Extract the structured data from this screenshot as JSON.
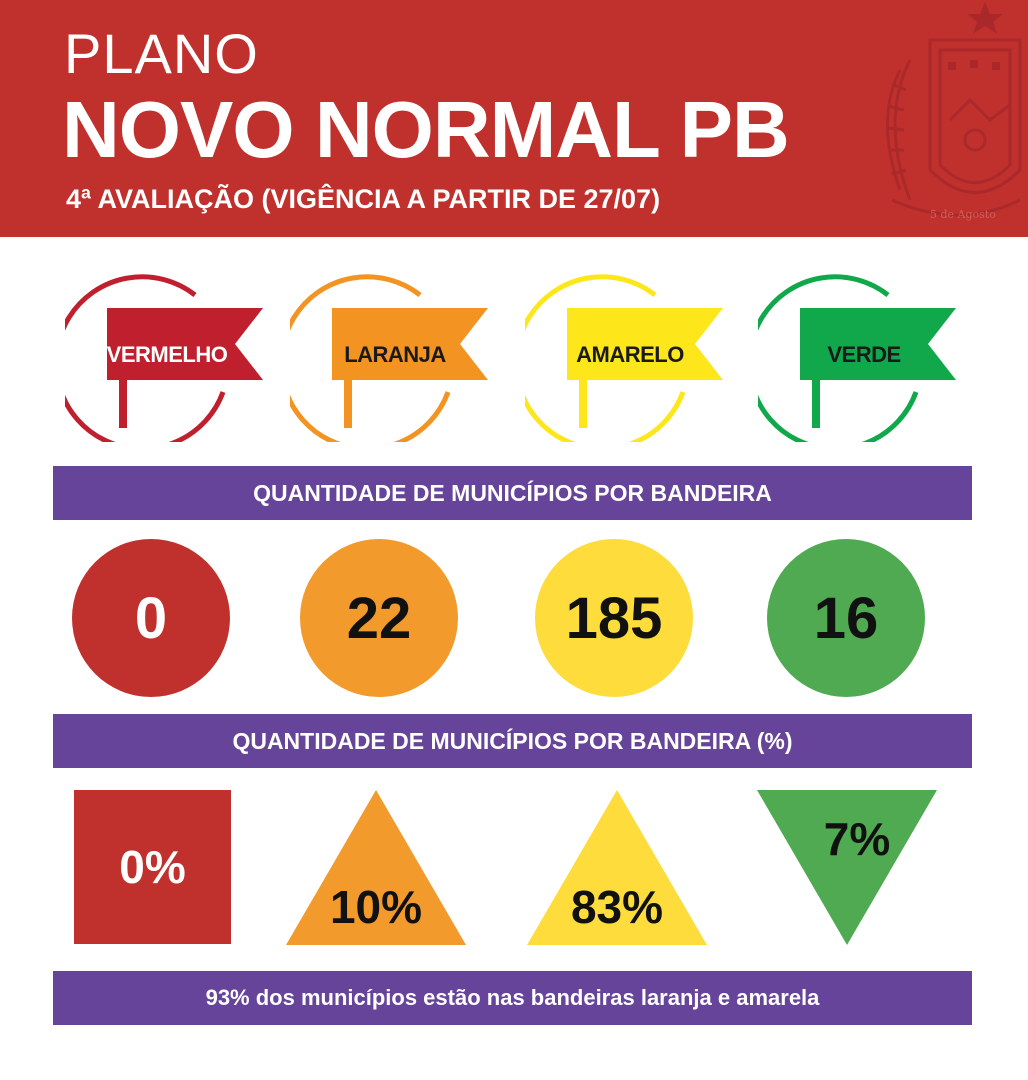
{
  "header": {
    "plano": "PLANO",
    "title": "NOVO NORMAL PB",
    "subtitle": "4ª AVALIAÇÃO (VIGÊNCIA A PARTIR DE 27/07)",
    "crest_text": "5 de Agosto"
  },
  "flags": [
    {
      "label": "VERMELHO",
      "color": "#c0202e",
      "text_color": "#ffffff"
    },
    {
      "label": "LARANJA",
      "color": "#f39322",
      "text_color": "#1a1a1a"
    },
    {
      "label": "AMARELO",
      "color": "#fde71a",
      "text_color": "#1a1a1a"
    },
    {
      "label": "VERDE",
      "color": "#10a84a",
      "text_color": "#1a1a1a"
    }
  ],
  "banner_count": "QUANTIDADE DE MUNICÍPIOS POR BANDEIRA",
  "counts": [
    {
      "value": "0",
      "color": "#c0302d",
      "text_color": "#ffffff"
    },
    {
      "value": "22",
      "color": "#f39a2c",
      "text_color": "#111111"
    },
    {
      "value": "185",
      "color": "#fddc3c",
      "text_color": "#111111"
    },
    {
      "value": "16",
      "color": "#4faa51",
      "text_color": "#111111"
    }
  ],
  "banner_percent": "QUANTIDADE DE MUNICÍPIOS POR BANDEIRA (%)",
  "percents": [
    {
      "value": "0%",
      "shape": "square",
      "color": "#c0302d",
      "text_color": "#ffffff"
    },
    {
      "value": "10%",
      "shape": "triangle-up",
      "color": "#f39a2c",
      "text_color": "#111111"
    },
    {
      "value": "83%",
      "shape": "triangle-up",
      "color": "#fddc3c",
      "text_color": "#111111"
    },
    {
      "value": "7%",
      "shape": "triangle-down",
      "color": "#4faa51",
      "text_color": "#111111"
    }
  ],
  "footer": "93% dos municípios estão nas bandeiras laranja e amarela",
  "colors": {
    "header_bg": "#c0302d",
    "banner_bg": "#65449a"
  }
}
